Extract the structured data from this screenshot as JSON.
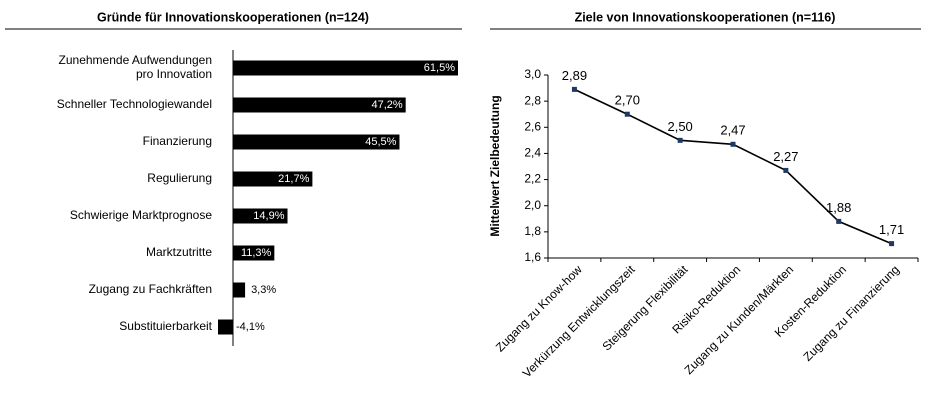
{
  "charts": [
    {
      "chart_data": {
        "type": "barh",
        "title": "Gründe für Innovationskooperationen (n=124)",
        "categories": [
          "Zunehmende Aufwendungen\npro Innovation",
          "Schneller Technologiewandel",
          "Finanzierung",
          "Regulierung",
          "Schwierige Marktprognose",
          "Marktzutritte",
          "Zugang zu Fachkräften",
          "Substituierbarkeit"
        ],
        "values": [
          61.5,
          47.2,
          45.5,
          21.7,
          14.9,
          11.3,
          3.3,
          -4.1
        ],
        "value_labels": [
          "61,5%",
          "47,2%",
          "45,5%",
          "21,7%",
          "14,9%",
          "11,3%",
          "3,3%",
          "-4,1%"
        ],
        "color": "#000000"
      }
    },
    {
      "chart_data": {
        "type": "line",
        "title": "Ziele von Innovationskooperationen (n=116)",
        "ylabel": "Mittelwert Zielbedeutung",
        "categories": [
          "Zugang zu Know-how",
          "Verkürzung Entwicklungszeit",
          "Steigerung Flexibilität",
          "Risiko-Reduktion",
          "Zugang zu Kunden/Märkten",
          "Kosten-Reduktion",
          "Zugang zu Finanzierung"
        ],
        "values": [
          2.89,
          2.7,
          2.5,
          2.47,
          2.27,
          1.88,
          1.71
        ],
        "value_labels": [
          "2,89",
          "2,70",
          "2,50",
          "2,47",
          "2,27",
          "1,88",
          "1,71"
        ],
        "color": "#000000",
        "marker_color": "#1f3864",
        "ylim": [
          1.6,
          3.0
        ],
        "yticks": [
          {
            "value": 1.6,
            "label": "1,6"
          },
          {
            "value": 1.8,
            "label": "1,8"
          },
          {
            "value": 2.0,
            "label": "2,0"
          },
          {
            "value": 2.2,
            "label": "2,2"
          },
          {
            "value": 2.4,
            "label": "2,4"
          },
          {
            "value": 2.6,
            "label": "2,6"
          },
          {
            "value": 2.8,
            "label": "2,8"
          },
          {
            "value": 3.0,
            "label": "3,0"
          }
        ]
      }
    }
  ]
}
